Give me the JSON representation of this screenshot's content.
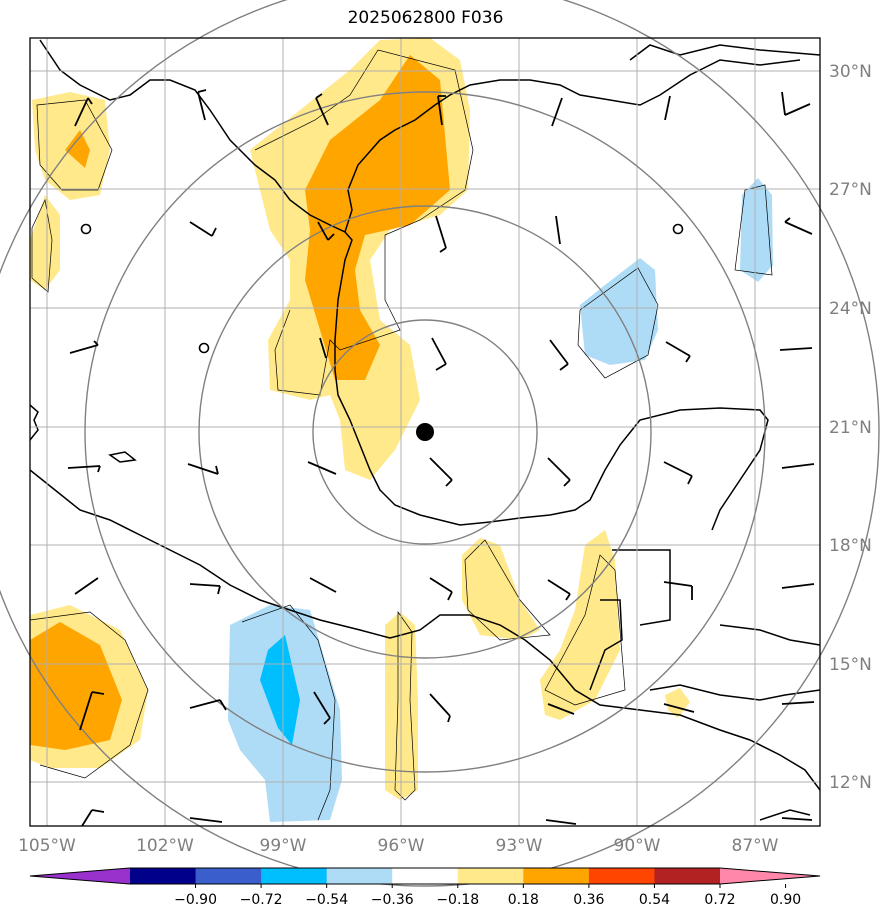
{
  "title": "2025062800 F036",
  "colors": {
    "pos_light": "#ffe98a",
    "pos_mid": "#ffa500",
    "neg_light": "#aedcf7",
    "neg_mid": "#00bfff",
    "grid": "#b0b0b0",
    "ring": "#808080",
    "coast": "#000000"
  },
  "lon_labels": [
    "105°W",
    "102°W",
    "99°W",
    "96°W",
    "93°W",
    "90°W",
    "87°W"
  ],
  "lat_labels": [
    "30°N",
    "27°N",
    "24°N",
    "21°N",
    "18°N",
    "15°N",
    "12°N"
  ],
  "colorbar": {
    "ticks": [
      "−0.90",
      "−0.72",
      "−0.54",
      "−0.36",
      "−0.18",
      "0.18",
      "0.36",
      "0.54",
      "0.72",
      "0.90"
    ],
    "colors": [
      "#9932cc",
      "#00008b",
      "#3a5fcd",
      "#00bfff",
      "#aedcf7",
      "#ffffff",
      "#ffe98a",
      "#ffa500",
      "#ff4500",
      "#b22222",
      "#ff88aa"
    ]
  },
  "center_marker": "storm-center"
}
